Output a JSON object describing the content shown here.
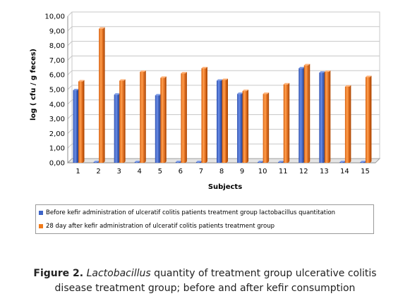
{
  "chart_data": {
    "type": "bar",
    "title": "",
    "xlabel": "Subjects",
    "ylabel": "log ( cfu / g feces)",
    "ylim": [
      0,
      10
    ],
    "yticks": [
      "0,00",
      "1,00",
      "2,00",
      "3,00",
      "4,00",
      "5,00",
      "6,00",
      "7,00",
      "8,00",
      "9,00",
      "10,00"
    ],
    "categories": [
      "1",
      "2",
      "3",
      "4",
      "5",
      "6",
      "7",
      "8",
      "9",
      "10",
      "11",
      "12",
      "13",
      "14",
      "15"
    ],
    "grid": true,
    "legend_position": "bottom",
    "series": [
      {
        "name": "Before kefir administration of ulceratif colitis patients treatment group lactobacillus quantitation",
        "color": "#3d64c8",
        "values": [
          4.95,
          0.05,
          4.65,
          0.05,
          4.6,
          0.05,
          0.05,
          5.6,
          4.7,
          0.05,
          0.05,
          6.45,
          6.15,
          0.05,
          0.05
        ]
      },
      {
        "name": "28 day after kefir administration of ulceratif colitis patients treatment group",
        "color": "#f07a1a",
        "values": [
          5.55,
          9.15,
          5.6,
          6.2,
          5.8,
          6.1,
          6.45,
          5.65,
          4.9,
          4.7,
          5.35,
          6.65,
          6.2,
          5.2,
          5.85
        ]
      }
    ]
  },
  "caption": {
    "label": "Figure 2.",
    "genus": "Lactobacillus",
    "line1_rest": " quantity of treatment group ulcerative colitis",
    "line2": "disease treatment group; before and after kefir consumption"
  }
}
